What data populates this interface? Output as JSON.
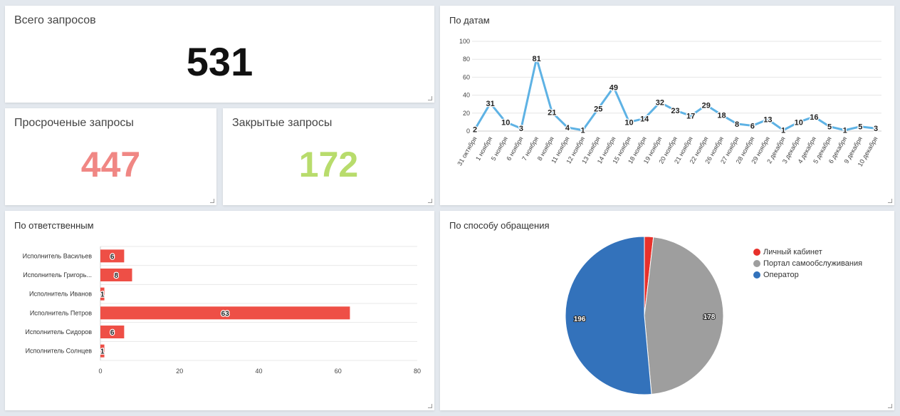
{
  "kpis": {
    "total": {
      "title": "Всего запросов",
      "value": "531",
      "color": "#111111"
    },
    "overdue": {
      "title": "Просроченые запросы",
      "value": "447",
      "color": "#f08784"
    },
    "closed": {
      "title": "Закрытые запросы",
      "value": "172",
      "color": "#b8dc6c"
    }
  },
  "colors": {
    "line": "#5eb2e4",
    "bar": "#ee4f46",
    "pie_red": "#e8312b",
    "pie_gray": "#9e9e9e",
    "pie_blue": "#3372bb"
  },
  "chart_data": [
    {
      "type": "line",
      "title": "По датам",
      "ylim": [
        0,
        100
      ],
      "yticks": [
        0,
        20,
        40,
        60,
        80,
        100
      ],
      "grid": true,
      "x": [
        "31 октября",
        "1 ноября",
        "5 ноября",
        "6 ноября",
        "7 ноября",
        "8 ноября",
        "11 ноября",
        "12 ноября",
        "13 ноября",
        "14 ноября",
        "15 ноября",
        "18 ноября",
        "19 ноября",
        "20 ноября",
        "21 ноября",
        "22 ноября",
        "26 ноября",
        "27 ноября",
        "28 ноября",
        "29 ноября",
        "2 декабря",
        "3 декабря",
        "4 декабря",
        "5 декабря",
        "6 декабря",
        "9 декабря",
        "10 декабря"
      ],
      "values": [
        2,
        31,
        10,
        3,
        81,
        21,
        4,
        1,
        25,
        49,
        10,
        14,
        32,
        23,
        17,
        29,
        18,
        8,
        6,
        13,
        1,
        10,
        16,
        5,
        1,
        5,
        3
      ]
    },
    {
      "type": "bar",
      "orientation": "horizontal",
      "title": "По ответственным",
      "categories": [
        "Исполнитель Васильев",
        "Исполнитель Григорь...",
        "Исполнитель Иванов",
        "Исполнитель Петров",
        "Исполнитель Сидоров",
        "Исполнитель Солнцев"
      ],
      "values": [
        6,
        8,
        1,
        63,
        6,
        1
      ],
      "xlim": [
        0,
        80
      ],
      "xticks": [
        0,
        20,
        40,
        60,
        80
      ],
      "grid": true
    },
    {
      "type": "pie",
      "title": "По способу обращения",
      "labels": [
        "Личный кабинет",
        "Портал самообслуживания",
        "Оператор"
      ],
      "values": [
        7,
        178,
        196
      ],
      "legend": "right"
    }
  ]
}
